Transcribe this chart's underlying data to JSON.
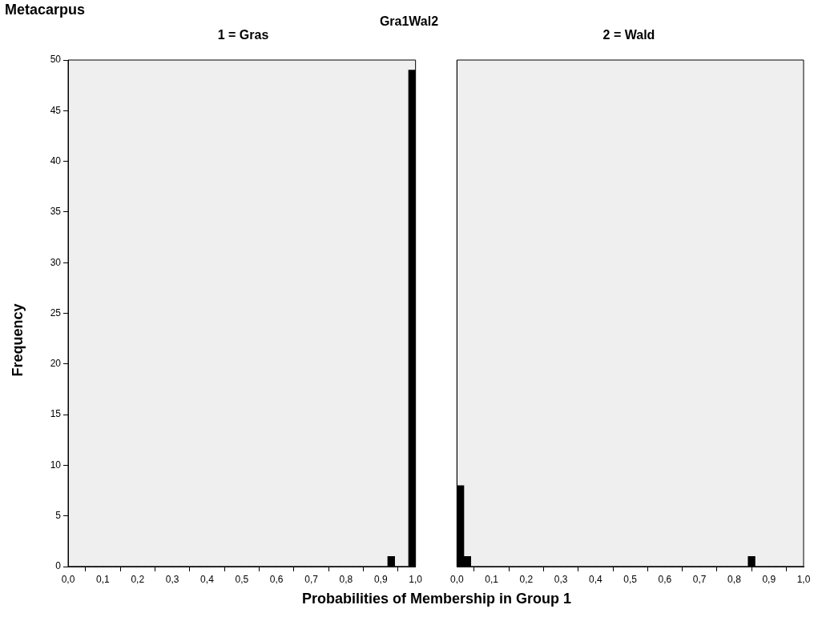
{
  "chart_data": [
    {
      "type": "histogram",
      "title": "1 = Gras",
      "ylabel": "Frequency",
      "xlabel": "Probabilities of Membership in Group 1",
      "annotations": [
        "Metacarpus",
        "Gra1Wal2"
      ],
      "color": "#000000",
      "bins": [
        0,
        0.02,
        0.04,
        0.06,
        0.08,
        0.1,
        0.12,
        0.14,
        0.16,
        0.18,
        0.2,
        0.22,
        0.24,
        0.26,
        0.28,
        0.3,
        0.32,
        0.34,
        0.36,
        0.38,
        0.4,
        0.42,
        0.44,
        0.46,
        0.48,
        0.5,
        0.52,
        0.54,
        0.56,
        0.58,
        0.6,
        0.62,
        0.64,
        0.66,
        0.68,
        0.7,
        0.72,
        0.74,
        0.76,
        0.78,
        0.8,
        0.82,
        0.84,
        0.86,
        0.88,
        0.9,
        0.92,
        0.94,
        0.96,
        0.98,
        1
      ],
      "values": [
        0,
        0,
        0,
        0,
        0,
        0,
        0,
        0,
        0,
        0,
        0,
        0,
        0,
        0,
        0,
        0,
        0,
        0,
        0,
        0,
        0,
        0,
        0,
        0,
        0,
        0,
        0,
        0,
        0,
        0,
        0,
        0,
        0,
        0,
        0,
        0,
        0,
        0,
        0,
        0,
        0,
        0,
        0,
        0,
        0,
        0,
        1,
        0,
        0,
        49
      ],
      "xlim": [
        0,
        1
      ],
      "ylim": [
        0,
        50
      ],
      "yticks": [
        0,
        5,
        10,
        15,
        20,
        25,
        30,
        35,
        40,
        45,
        50
      ],
      "xticks": [
        {
          "value": 0,
          "label": "0,0"
        },
        {
          "value": 0.1,
          "label": "0,1"
        },
        {
          "value": 0.2,
          "label": "0,2"
        },
        {
          "value": 0.3,
          "label": "0,3"
        },
        {
          "value": 0.4,
          "label": "0,4"
        },
        {
          "value": 0.5,
          "label": "0,5"
        },
        {
          "value": 0.6,
          "label": "0,6"
        },
        {
          "value": 0.7,
          "label": "0,7"
        },
        {
          "value": 0.8,
          "label": "0,8"
        },
        {
          "value": 0.9,
          "label": "0,9"
        },
        {
          "value": 1,
          "label": "1,0"
        }
      ],
      "grid": false
    },
    {
      "type": "histogram",
      "title": "2 = Wald",
      "color": "#000000",
      "bins": [
        0,
        0.02,
        0.04,
        0.06,
        0.08,
        0.1,
        0.12,
        0.14,
        0.16,
        0.18,
        0.2,
        0.22,
        0.24,
        0.26,
        0.28,
        0.3,
        0.32,
        0.34,
        0.36,
        0.38,
        0.4,
        0.42,
        0.44,
        0.46,
        0.48,
        0.5,
        0.52,
        0.54,
        0.56,
        0.58,
        0.6,
        0.62,
        0.64,
        0.66,
        0.68,
        0.7,
        0.72,
        0.74,
        0.76,
        0.78,
        0.8,
        0.82,
        0.84,
        0.86,
        0.88,
        0.9,
        0.92,
        0.94,
        0.96,
        0.98,
        1
      ],
      "values": [
        8,
        1,
        0,
        0,
        0,
        0,
        0,
        0,
        0,
        0,
        0,
        0,
        0,
        0,
        0,
        0,
        0,
        0,
        0,
        0,
        0,
        0,
        0,
        0,
        0,
        0,
        0,
        0,
        0,
        0,
        0,
        0,
        0,
        0,
        0,
        0,
        0,
        0,
        0,
        0,
        0,
        0,
        1,
        0,
        0,
        0,
        0,
        0,
        0,
        0
      ],
      "xlim": [
        0,
        1
      ],
      "ylim": [
        0,
        50
      ],
      "yticks": [
        0,
        5,
        10,
        15,
        20,
        25,
        30,
        35,
        40,
        45,
        50
      ],
      "xticks": [
        {
          "value": 0,
          "label": "0,0"
        },
        {
          "value": 0.1,
          "label": "0,1"
        },
        {
          "value": 0.2,
          "label": "0,2"
        },
        {
          "value": 0.3,
          "label": "0,3"
        },
        {
          "value": 0.4,
          "label": "0,4"
        },
        {
          "value": 0.5,
          "label": "0,5"
        },
        {
          "value": 0.6,
          "label": "0,6"
        },
        {
          "value": 0.7,
          "label": "0,7"
        },
        {
          "value": 0.8,
          "label": "0,8"
        },
        {
          "value": 0.9,
          "label": "0,9"
        },
        {
          "value": 1,
          "label": "1,0"
        }
      ],
      "tick_labels": "x",
      "grid": false
    }
  ]
}
